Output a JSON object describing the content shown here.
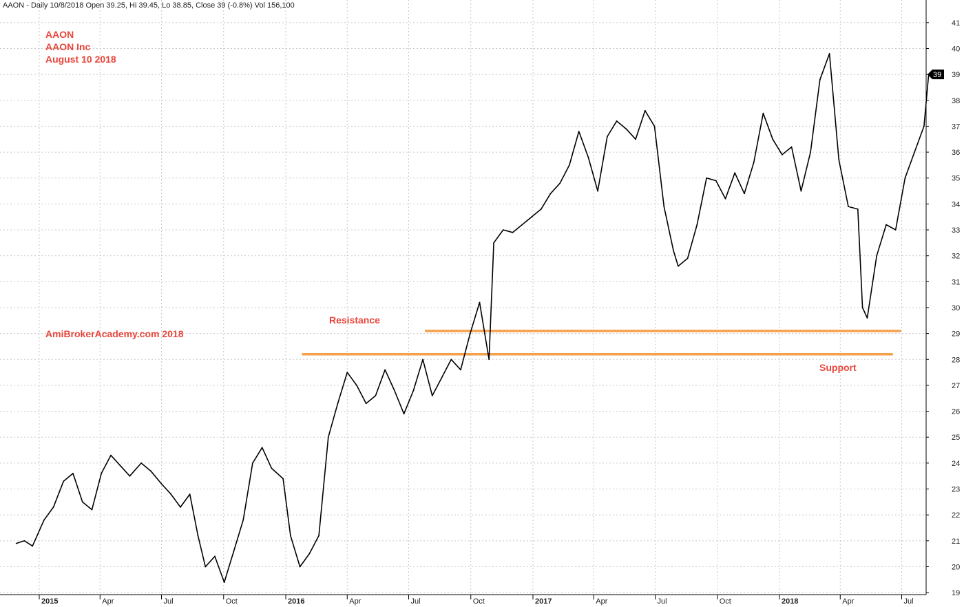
{
  "header": "AAON - Daily 10/8/2018 Open 39.25, Hi 39.45, Lo 38.85, Close 39 (-0.8%) Vol 156,100",
  "annotations": {
    "ticker": "AAON",
    "company": "AAON Inc",
    "date": "August 10 2018",
    "watermark": "AmiBrokerAcademy.com  2018",
    "resistance": "Resistance",
    "support": "Support"
  },
  "chart_data": {
    "type": "line",
    "title": "AAON - Daily 10/8/2018 Open 39.25, Hi 39.45, Lo 38.85, Close 39 (-0.8%) Vol 156,100",
    "xlabel": "",
    "ylabel": "",
    "ylim": [
      18.7,
      41.4
    ],
    "y_ticks": [
      19,
      20,
      21,
      22,
      23,
      24,
      25,
      26,
      27,
      28,
      29,
      30,
      31,
      32,
      33,
      34,
      35,
      36,
      37,
      38,
      39,
      40,
      41
    ],
    "x_ticks": [
      {
        "label": "2015",
        "date": "2015-01-01",
        "year": true
      },
      {
        "label": "Apr",
        "date": "2015-04-01",
        "year": false
      },
      {
        "label": "Jul",
        "date": "2015-07-01",
        "year": false
      },
      {
        "label": "Oct",
        "date": "2015-10-01",
        "year": false
      },
      {
        "label": "2016",
        "date": "2016-01-01",
        "year": true
      },
      {
        "label": "Apr",
        "date": "2016-04-01",
        "year": false
      },
      {
        "label": "Jul",
        "date": "2016-07-01",
        "year": false
      },
      {
        "label": "Oct",
        "date": "2016-10-01",
        "year": false
      },
      {
        "label": "2017",
        "date": "2017-01-01",
        "year": true
      },
      {
        "label": "Apr",
        "date": "2017-04-01",
        "year": false
      },
      {
        "label": "Jul",
        "date": "2017-07-01",
        "year": false
      },
      {
        "label": "Oct",
        "date": "2017-10-01",
        "year": false
      },
      {
        "label": "2018",
        "date": "2018-01-01",
        "year": true
      },
      {
        "label": "Apr",
        "date": "2018-04-01",
        "year": false
      },
      {
        "label": "Jul",
        "date": "2018-07-01",
        "year": false
      }
    ],
    "grid": true,
    "last_price_label": "39",
    "last_price": 39,
    "series": [
      {
        "style": "price-bars",
        "color": "#000000",
        "x": [
          "2014-11-28",
          "2014-12-10",
          "2014-12-22",
          "2015-01-08",
          "2015-01-22",
          "2015-02-06",
          "2015-02-20",
          "2015-03-06",
          "2015-03-20",
          "2015-04-03",
          "2015-04-17",
          "2015-05-01",
          "2015-05-15",
          "2015-06-01",
          "2015-06-15",
          "2015-07-01",
          "2015-07-15",
          "2015-07-29",
          "2015-08-12",
          "2015-08-24",
          "2015-09-04",
          "2015-09-18",
          "2015-10-02",
          "2015-10-16",
          "2015-10-30",
          "2015-11-13",
          "2015-11-27",
          "2015-12-11",
          "2015-12-28",
          "2016-01-08",
          "2016-01-22",
          "2016-02-05",
          "2016-02-19",
          "2016-03-04",
          "2016-03-18",
          "2016-04-01",
          "2016-04-15",
          "2016-04-29",
          "2016-05-13",
          "2016-05-27",
          "2016-06-10",
          "2016-06-24",
          "2016-07-08",
          "2016-07-22",
          "2016-08-05",
          "2016-08-19",
          "2016-09-02",
          "2016-09-16",
          "2016-09-30",
          "2016-10-14",
          "2016-10-28",
          "2016-11-04",
          "2016-11-18",
          "2016-12-02",
          "2016-12-16",
          "2016-12-30",
          "2017-01-13",
          "2017-01-27",
          "2017-02-10",
          "2017-02-24",
          "2017-03-10",
          "2017-03-24",
          "2017-04-07",
          "2017-04-21",
          "2017-05-05",
          "2017-05-19",
          "2017-06-02",
          "2017-06-16",
          "2017-06-30",
          "2017-07-14",
          "2017-07-28",
          "2017-08-04",
          "2017-08-18",
          "2017-09-01",
          "2017-09-15",
          "2017-09-29",
          "2017-10-13",
          "2017-10-27",
          "2017-11-10",
          "2017-11-24",
          "2017-12-08",
          "2017-12-22",
          "2018-01-05",
          "2018-01-19",
          "2018-02-02",
          "2018-02-16",
          "2018-03-02",
          "2018-03-16",
          "2018-03-30",
          "2018-04-13",
          "2018-04-27",
          "2018-05-04",
          "2018-05-11",
          "2018-05-25",
          "2018-06-08",
          "2018-06-22",
          "2018-07-06",
          "2018-07-20",
          "2018-08-03",
          "2018-08-10"
        ],
        "y": [
          20.9,
          21.0,
          20.8,
          21.8,
          22.3,
          23.3,
          23.6,
          22.5,
          22.2,
          23.6,
          24.3,
          23.9,
          23.5,
          24.0,
          23.7,
          23.2,
          22.8,
          22.3,
          22.8,
          21.2,
          20.0,
          20.4,
          19.4,
          20.6,
          21.8,
          24.0,
          24.6,
          23.8,
          23.4,
          21.2,
          20.0,
          20.5,
          21.2,
          25.0,
          26.3,
          27.5,
          27.0,
          26.3,
          26.6,
          27.6,
          26.8,
          25.9,
          26.8,
          28.0,
          26.6,
          27.3,
          28.0,
          27.6,
          29.0,
          30.2,
          28.0,
          32.5,
          33.0,
          32.9,
          33.2,
          33.5,
          33.8,
          34.4,
          34.8,
          35.5,
          36.8,
          35.8,
          34.5,
          36.6,
          37.2,
          36.9,
          36.5,
          37.6,
          37.0,
          33.9,
          32.2,
          31.6,
          31.9,
          33.2,
          35.0,
          34.9,
          34.2,
          35.2,
          34.4,
          35.6,
          37.5,
          36.5,
          35.9,
          36.2,
          34.5,
          36.0,
          38.8,
          39.8,
          35.7,
          33.9,
          33.8,
          30.0,
          29.6,
          32.0,
          33.2,
          33.0,
          35.0,
          36.0,
          37.0,
          39.0
        ]
      }
    ],
    "levels": [
      {
        "name": "Resistance",
        "value": 29.1,
        "x_start": "2016-07-25",
        "x_end": "2018-06-30",
        "color": "#f5a04a"
      },
      {
        "name": "Support",
        "value": 28.2,
        "x_start": "2016-01-25",
        "x_end": "2018-06-18",
        "color": "#f5a04a"
      }
    ]
  }
}
